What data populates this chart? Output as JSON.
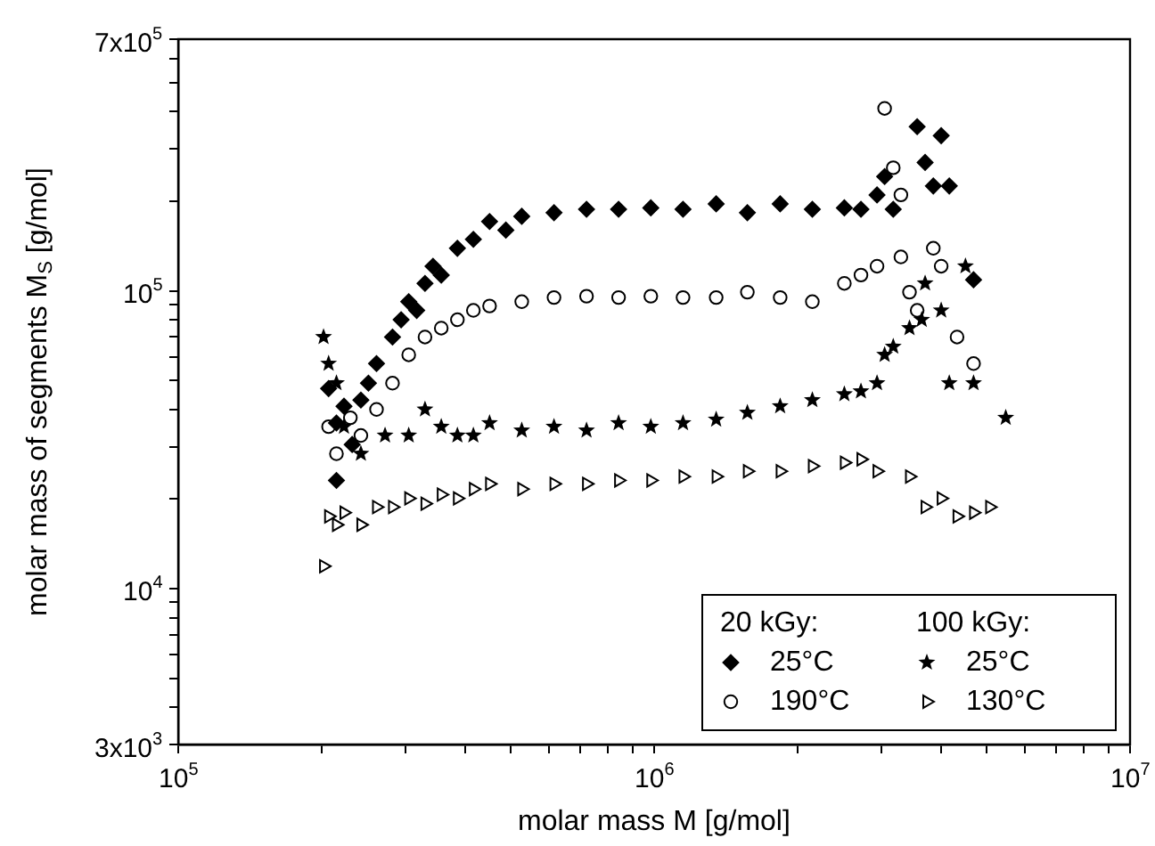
{
  "chart_data": {
    "type": "scatter",
    "xlabel": "molar mass M [g/mol]",
    "ylabel": "molar mass of segments M$_{S}$ [g/mol]",
    "log": "xy",
    "xlim": [
      100000,
      10000000
    ],
    "ylim": [
      3000,
      700000
    ],
    "xticks": [
      {
        "value": 100000,
        "label": "10$^{5}$"
      },
      {
        "value": 200000,
        "label": null
      },
      {
        "value": 300000,
        "label": null
      },
      {
        "value": 400000,
        "label": null
      },
      {
        "value": 500000,
        "label": null
      },
      {
        "value": 600000,
        "label": null
      },
      {
        "value": 700000,
        "label": null
      },
      {
        "value": 800000,
        "label": null
      },
      {
        "value": 900000,
        "label": null
      },
      {
        "value": 1000000,
        "label": "10$^{6}$"
      },
      {
        "value": 2000000,
        "label": null
      },
      {
        "value": 3000000,
        "label": null
      },
      {
        "value": 4000000,
        "label": null
      },
      {
        "value": 5000000,
        "label": null
      },
      {
        "value": 6000000,
        "label": null
      },
      {
        "value": 7000000,
        "label": null
      },
      {
        "value": 8000000,
        "label": null
      },
      {
        "value": 9000000,
        "label": null
      },
      {
        "value": 10000000,
        "label": "10$^{7}$"
      }
    ],
    "yticks": [
      {
        "value": 3000,
        "label": "3x10$^{3}$"
      },
      {
        "value": 4000,
        "label": null
      },
      {
        "value": 5000,
        "label": null
      },
      {
        "value": 6000,
        "label": null
      },
      {
        "value": 7000,
        "label": null
      },
      {
        "value": 8000,
        "label": null
      },
      {
        "value": 9000,
        "label": null
      },
      {
        "value": 10000,
        "label": "10$^{4}$"
      },
      {
        "value": 20000,
        "label": null
      },
      {
        "value": 30000,
        "label": null
      },
      {
        "value": 40000,
        "label": null
      },
      {
        "value": 50000,
        "label": null
      },
      {
        "value": 60000,
        "label": null
      },
      {
        "value": 70000,
        "label": null
      },
      {
        "value": 80000,
        "label": null
      },
      {
        "value": 90000,
        "label": null
      },
      {
        "value": 100000,
        "label": "10$^{5}$"
      },
      {
        "value": 200000,
        "label": null
      },
      {
        "value": 300000,
        "label": null
      },
      {
        "value": 400000,
        "label": null
      },
      {
        "value": 500000,
        "label": null
      },
      {
        "value": 600000,
        "label": null
      },
      {
        "value": 700000,
        "label": "7x10$^{5}$"
      }
    ],
    "grid": false,
    "legend": "bottom right",
    "annotations": [
      "20 kGy:",
      "100 kGy:"
    ],
    "series": [
      {
        "name": "25°C",
        "color": "#000000",
        "marker": "diamond",
        "x": [
          207000,
          215000,
          223000,
          232000,
          242000,
          251000,
          261000,
          282000,
          294000,
          305000,
          317000,
          330000,
          343000,
          357000,
          386000,
          417000,
          451000,
          488000,
          527000,
          616000,
          721000,
          842000,
          984000,
          1150000,
          1350000,
          1570000,
          1840000,
          2150000,
          2510000,
          2720000,
          2940000,
          3050000,
          3180000,
          3570000,
          3710000,
          3860000,
          4010000,
          4170000,
          4690000,
          215000
        ],
        "values": [
          47000,
          36000,
          41000,
          30500,
          43000,
          49000,
          57000,
          70000,
          80000,
          92000,
          86000,
          106000,
          121000,
          113000,
          139000,
          149000,
          171000,
          160000,
          178000,
          183000,
          188000,
          188000,
          190000,
          188000,
          196000,
          183000,
          196000,
          188000,
          190000,
          188000,
          210000,
          242000,
          188000,
          356000,
          270000,
          225000,
          332000,
          225000,
          109000,
          23100
        ]
      },
      {
        "name": "190°C",
        "color": "#000000",
        "marker": "circle",
        "x": [
          207000,
          215000,
          230000,
          242000,
          261000,
          282000,
          305000,
          330000,
          357000,
          386000,
          417000,
          451000,
          527000,
          616000,
          721000,
          842000,
          984000,
          1150000,
          1350000,
          1570000,
          1840000,
          2150000,
          2510000,
          2720000,
          2940000,
          3050000,
          3180000,
          3300000,
          3300000,
          3440000,
          3570000,
          3860000,
          4010000,
          4330000,
          4690000
        ],
        "values": [
          35000,
          28400,
          37500,
          32700,
          40000,
          49000,
          61000,
          70000,
          75000,
          80000,
          86000,
          89000,
          92000,
          95000,
          96000,
          95000,
          96000,
          95000,
          95000,
          99000,
          95000,
          92000,
          106000,
          113000,
          121000,
          410000,
          259000,
          210000,
          130000,
          99000,
          86000,
          139000,
          121000,
          70000,
          57000
        ]
      },
      {
        "name": "25°C",
        "color": "#000000",
        "marker": "star",
        "x": [
          202000,
          207000,
          215000,
          223000,
          242000,
          272000,
          305000,
          330000,
          357000,
          386000,
          417000,
          451000,
          527000,
          616000,
          721000,
          842000,
          984000,
          1150000,
          1350000,
          1570000,
          1840000,
          2150000,
          2510000,
          2720000,
          2940000,
          3050000,
          3180000,
          3440000,
          3650000,
          3710000,
          4010000,
          4170000,
          4510000,
          4690000,
          5480000
        ],
        "values": [
          70000,
          57000,
          49000,
          35000,
          28400,
          32700,
          32700,
          40000,
          35000,
          32700,
          32700,
          36000,
          34000,
          35000,
          34000,
          36000,
          35000,
          36000,
          37000,
          39000,
          41000,
          43000,
          45000,
          46000,
          49000,
          61000,
          65000,
          75000,
          80000,
          106000,
          86000,
          49000,
          121000,
          49000,
          37500
        ]
      },
      {
        "name": "130°C",
        "color": "#000000",
        "marker": "triangle",
        "x": [
          202000,
          207000,
          215000,
          223000,
          242000,
          261000,
          282000,
          305000,
          330000,
          357000,
          386000,
          417000,
          451000,
          527000,
          616000,
          721000,
          842000,
          984000,
          1150000,
          1350000,
          1570000,
          1840000,
          2150000,
          2510000,
          2720000,
          2940000,
          3440000,
          3710000,
          4010000,
          4330000,
          4690000,
          5070000
        ],
        "values": [
          11900,
          17500,
          16400,
          18000,
          16400,
          18800,
          18800,
          20100,
          19300,
          20700,
          20100,
          21600,
          22500,
          21600,
          22500,
          22500,
          23100,
          23100,
          23800,
          23800,
          24800,
          24800,
          25800,
          26500,
          27200,
          24800,
          23800,
          18800,
          20100,
          17500,
          18000,
          18800
        ]
      }
    ]
  }
}
